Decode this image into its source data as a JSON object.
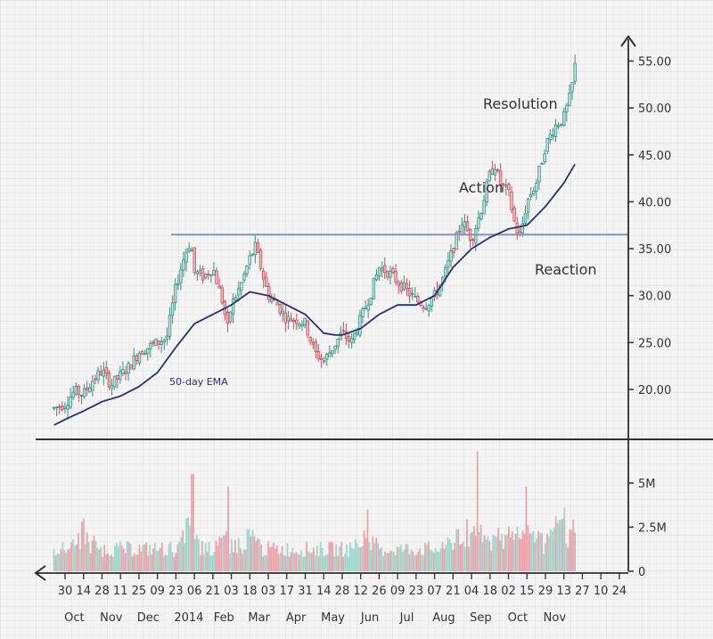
{
  "chart_data": {
    "type": "candlestick",
    "title": "",
    "xlabel": "",
    "ylabel": "",
    "price_axis": {
      "ylim": [
        15,
        57
      ],
      "ticks": [
        "20.00",
        "25.00",
        "30.00",
        "35.00",
        "40.00",
        "45.00",
        "50.00",
        "55.00"
      ]
    },
    "volume_axis": {
      "ylim": [
        0,
        7000000
      ],
      "ticks": [
        {
          "value": 0,
          "label": "0"
        },
        {
          "value": 2500000,
          "label": "2.5M"
        },
        {
          "value": 5000000,
          "label": "5M"
        }
      ]
    },
    "x_day_ticks": [
      "30",
      "14",
      "28",
      "11",
      "25",
      "09",
      "23",
      "06",
      "21",
      "03",
      "18",
      "03",
      "17",
      "31",
      "14",
      "28",
      "12",
      "26",
      "09",
      "23",
      "07",
      "21",
      "04",
      "18",
      "02",
      "15",
      "29",
      "13",
      "27",
      "10",
      "24"
    ],
    "x_month_labels": [
      {
        "label": "Oct",
        "tick": 0.5
      },
      {
        "label": "Nov",
        "tick": 2.5
      },
      {
        "label": "Dec",
        "tick": 4.5
      },
      {
        "label": "2014",
        "tick": 6.7
      },
      {
        "label": "Feb",
        "tick": 8.6
      },
      {
        "label": "Mar",
        "tick": 10.5
      },
      {
        "label": "Apr",
        "tick": 12.5
      },
      {
        "label": "May",
        "tick": 14.5
      },
      {
        "label": "Jun",
        "tick": 16.5
      },
      {
        "label": "Jul",
        "tick": 18.5
      },
      {
        "label": "Aug",
        "tick": 20.5
      },
      {
        "label": "Sep",
        "tick": 22.5
      },
      {
        "label": "Oct",
        "tick": 24.5
      },
      {
        "label": "Nov",
        "tick": 26.5
      }
    ],
    "resistance_level": 36.5,
    "price_path": [
      [
        -0.6,
        18.0
      ],
      [
        0,
        18.5
      ],
      [
        0.5,
        19.8
      ],
      [
        1,
        19.5
      ],
      [
        1.5,
        21
      ],
      [
        2,
        22
      ],
      [
        2.5,
        20.5
      ],
      [
        3,
        21.5
      ],
      [
        3.5,
        22.5
      ],
      [
        4,
        24
      ],
      [
        4.5,
        24.5
      ],
      [
        5,
        25
      ],
      [
        5.5,
        25.5
      ],
      [
        6,
        31
      ],
      [
        6.5,
        34.5
      ],
      [
        6.8,
        35.8
      ],
      [
        7,
        32.5
      ],
      [
        7.5,
        32
      ],
      [
        8,
        33
      ],
      [
        8.5,
        29.5
      ],
      [
        8.8,
        26.5
      ],
      [
        9,
        29
      ],
      [
        9.5,
        31
      ],
      [
        10,
        34
      ],
      [
        10.3,
        35.2
      ],
      [
        10.6,
        33
      ],
      [
        11,
        30
      ],
      [
        11.5,
        29
      ],
      [
        12,
        27.5
      ],
      [
        12.5,
        27.5
      ],
      [
        13,
        27
      ],
      [
        13.5,
        24
      ],
      [
        14,
        23
      ],
      [
        14.5,
        24.5
      ],
      [
        15,
        26
      ],
      [
        15.5,
        25
      ],
      [
        16,
        27.5
      ],
      [
        16.5,
        30
      ],
      [
        17,
        33
      ],
      [
        17.5,
        32.5
      ],
      [
        18,
        31.5
      ],
      [
        18.5,
        30.5
      ],
      [
        19,
        29.5
      ],
      [
        19.5,
        29
      ],
      [
        20,
        30
      ],
      [
        20.5,
        32
      ],
      [
        21,
        35
      ],
      [
        21.5,
        38
      ],
      [
        22,
        36
      ],
      [
        22.5,
        39
      ],
      [
        23,
        43
      ],
      [
        23.3,
        44
      ],
      [
        23.5,
        42
      ],
      [
        24,
        41
      ],
      [
        24.3,
        38
      ],
      [
        24.6,
        36
      ],
      [
        25,
        40
      ],
      [
        25.5,
        42
      ],
      [
        26,
        46
      ],
      [
        26.5,
        48
      ],
      [
        27,
        49
      ],
      [
        27.3,
        51
      ],
      [
        27.5,
        53
      ],
      [
        27.6,
        54.5
      ]
    ],
    "ema_50_path": [
      [
        -0.6,
        16.2
      ],
      [
        0,
        16.8
      ],
      [
        1,
        17.7
      ],
      [
        2,
        18.7
      ],
      [
        3,
        19.3
      ],
      [
        4,
        20.3
      ],
      [
        5,
        21.8
      ],
      [
        6,
        24.5
      ],
      [
        7,
        27
      ],
      [
        8,
        28
      ],
      [
        9,
        29
      ],
      [
        10,
        30.4
      ],
      [
        11,
        30
      ],
      [
        12,
        29
      ],
      [
        13,
        28
      ],
      [
        14,
        26
      ],
      [
        14.6,
        25.8
      ],
      [
        15,
        25.8
      ],
      [
        16,
        26.5
      ],
      [
        17,
        28
      ],
      [
        18,
        29
      ],
      [
        19,
        29
      ],
      [
        20,
        30
      ],
      [
        21,
        33
      ],
      [
        22,
        35
      ],
      [
        23,
        36.2
      ],
      [
        24,
        37.1
      ],
      [
        25,
        37.5
      ],
      [
        26,
        39.5
      ],
      [
        27,
        42
      ],
      [
        27.6,
        44
      ]
    ],
    "volume_peaks": [
      {
        "x": 6.9,
        "value": 5500000
      },
      {
        "x": 8.8,
        "value": 4800000
      },
      {
        "x": 22.3,
        "value": 6800000
      },
      {
        "x": 25,
        "value": 4800000
      },
      {
        "x": 16.4,
        "value": 3500000
      },
      {
        "x": 1,
        "value": 3000000
      },
      {
        "x": 27,
        "value": 3600000
      }
    ],
    "annotations": [
      "Resolution",
      "Action",
      "Reaction",
      "50-day EMA"
    ]
  }
}
